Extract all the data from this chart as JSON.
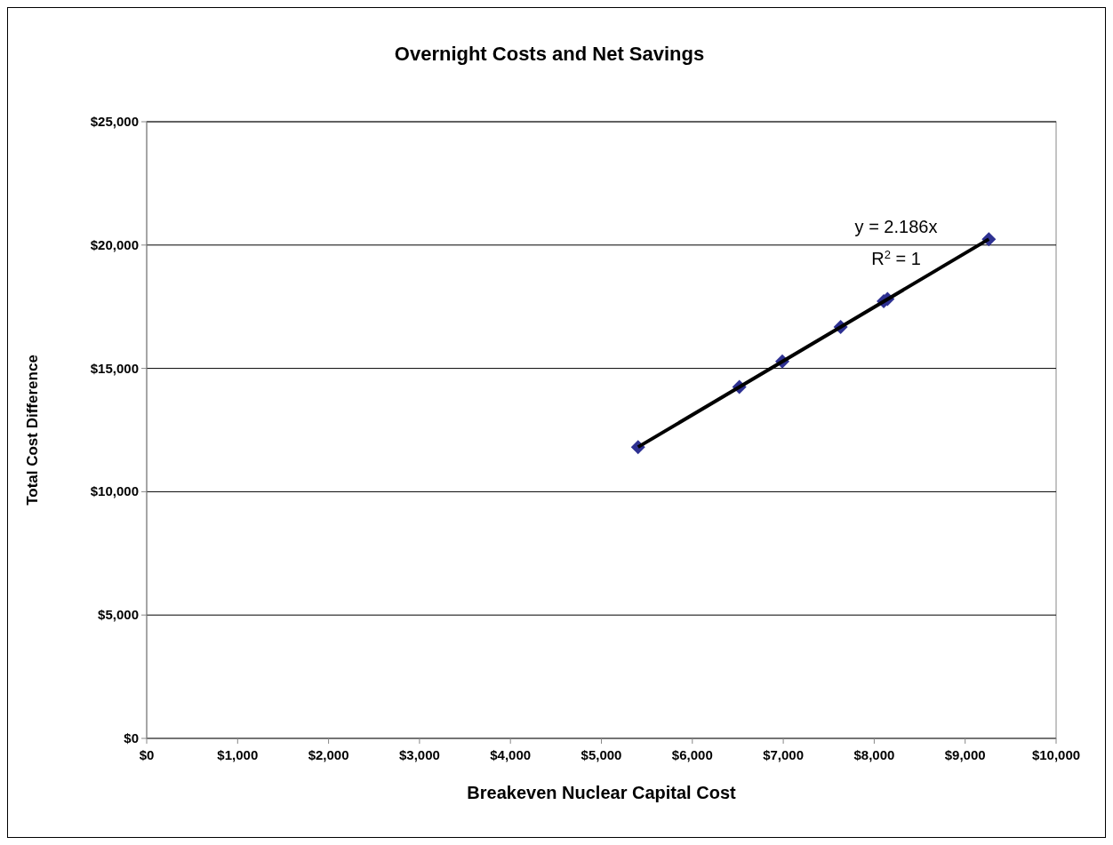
{
  "chart_data": {
    "type": "scatter",
    "title": "Overnight Costs and Net Savings",
    "xlabel": "Breakeven Nuclear Capital Cost",
    "ylabel": "Total Cost Difference",
    "series": [
      {
        "type": "scatter",
        "color": "#2e3192",
        "x": [
          5403,
          6517,
          6989,
          7631,
          8104,
          8146,
          9260
        ],
        "values": [
          11810,
          14250,
          15280,
          16680,
          17720,
          17810,
          20240
        ],
        "marker": "diamond"
      },
      {
        "type": "line",
        "color": "#000000",
        "x": [
          5403,
          9260
        ],
        "values": [
          11810,
          20240
        ],
        "marker": "none"
      }
    ],
    "annotations": [
      "y = 2.186x",
      "R$^{2}$ = 1"
    ],
    "xlim": [
      0,
      10000
    ],
    "xticks": [
      {
        "value": 0,
        "label": "$0"
      },
      {
        "value": 1000,
        "label": "$1,000"
      },
      {
        "value": 2000,
        "label": "$2,000"
      },
      {
        "value": 3000,
        "label": "$3,000"
      },
      {
        "value": 4000,
        "label": "$4,000"
      },
      {
        "value": 5000,
        "label": "$5,000"
      },
      {
        "value": 6000,
        "label": "$6,000"
      },
      {
        "value": 7000,
        "label": "$7,000"
      },
      {
        "value": 8000,
        "label": "$8,000"
      },
      {
        "value": 9000,
        "label": "$9,000"
      },
      {
        "value": 10000,
        "label": "$10,000"
      }
    ],
    "ylim": [
      0,
      25000
    ],
    "yticks": [
      {
        "value": 0,
        "label": "$0"
      },
      {
        "value": 5000,
        "label": "$5,000"
      },
      {
        "value": 10000,
        "label": "$10,000"
      },
      {
        "value": 15000,
        "label": "$15,000"
      },
      {
        "value": 20000,
        "label": "$20,000"
      },
      {
        "value": 25000,
        "label": "$25,000"
      }
    ],
    "grid": "y"
  }
}
